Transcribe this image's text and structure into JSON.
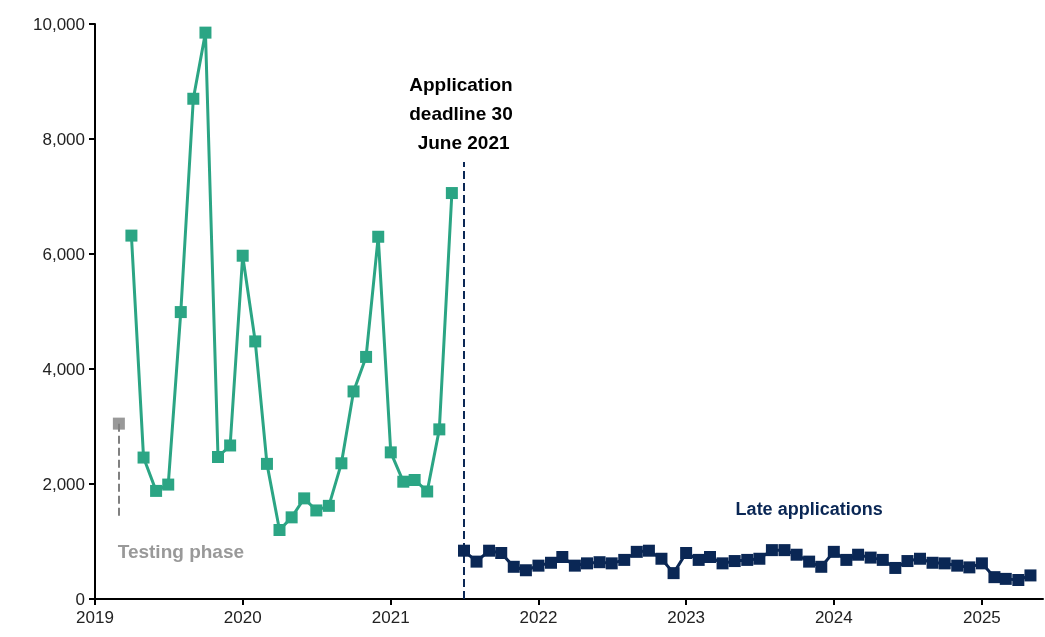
{
  "chart_data": {
    "type": "line",
    "marker": "square",
    "line_style": "solid",
    "legend": false,
    "grid": false,
    "xlim": [
      "2019-01",
      "2025-06"
    ],
    "xticks": [
      "2019",
      "2020",
      "2021",
      "2022",
      "2023",
      "2024",
      "2025"
    ],
    "ylim": [
      0,
      10000
    ],
    "yticks": [
      0,
      {
        "value": 2000,
        "label": "2,000"
      },
      {
        "value": 4000,
        "label": "4,000"
      },
      {
        "value": 6000,
        "label": "6,000"
      },
      {
        "value": 8000,
        "label": "8,000"
      },
      {
        "value": 10000,
        "label": "10,000"
      }
    ],
    "ref_lines": [
      {
        "axis": "x",
        "value": "2021-06-30",
        "label": "Application deadline 30 June 2021",
        "color": "#0a2755",
        "line_style": "dashed"
      }
    ],
    "series": [
      {
        "name": "Testing phase",
        "type": "scatter",
        "color": "#808080",
        "x": [
          "2019-03"
        ],
        "values": [
          3050
        ]
      },
      {
        "color": "#2ba584",
        "x": [
          "2019-04",
          "2019-05",
          "2019-06",
          "2019-07",
          "2019-08",
          "2019-09",
          "2019-10",
          "2019-11",
          "2019-12",
          "2020-01",
          "2020-02",
          "2020-03",
          "2020-04",
          "2020-05",
          "2020-06",
          "2020-07",
          "2020-08",
          "2020-09",
          "2020-10",
          "2020-11",
          "2020-12",
          "2021-01",
          "2021-02",
          "2021-03",
          "2021-04",
          "2021-05",
          "2021-06"
        ],
        "values": [
          6320,
          2460,
          1880,
          1990,
          4990,
          8700,
          9850,
          2470,
          2670,
          5970,
          4480,
          2350,
          1200,
          1420,
          1750,
          1540,
          1620,
          2360,
          3610,
          4210,
          6300,
          2550,
          2040,
          2070,
          1870,
          2950,
          7060
        ]
      },
      {
        "name": "Late applications",
        "color": "#0a2755",
        "x": [
          "2021-07",
          "2021-08",
          "2021-09",
          "2021-10",
          "2021-11",
          "2021-12",
          "2022-01",
          "2022-02",
          "2022-03",
          "2022-04",
          "2022-05",
          "2022-06",
          "2022-07",
          "2022-08",
          "2022-09",
          "2022-10",
          "2022-11",
          "2022-12",
          "2023-01",
          "2023-02",
          "2023-03",
          "2023-04",
          "2023-05",
          "2023-06",
          "2023-07",
          "2023-08",
          "2023-09",
          "2023-10",
          "2023-11",
          "2023-12",
          "2024-01",
          "2024-02",
          "2024-03",
          "2024-04",
          "2024-05",
          "2024-06",
          "2024-07",
          "2024-08",
          "2024-09",
          "2024-10",
          "2024-11",
          "2024-12",
          "2025-01",
          "2025-02",
          "2025-03",
          "2025-04",
          "2025-05"
        ],
        "values": [
          840,
          650,
          840,
          800,
          560,
          500,
          580,
          630,
          730,
          580,
          620,
          640,
          620,
          680,
          820,
          840,
          700,
          450,
          800,
          680,
          730,
          620,
          660,
          680,
          700,
          850,
          850,
          770,
          650,
          560,
          820,
          680,
          770,
          720,
          680,
          540,
          660,
          700,
          630,
          620,
          580,
          550,
          620,
          380,
          350,
          330,
          410
        ]
      }
    ]
  }
}
